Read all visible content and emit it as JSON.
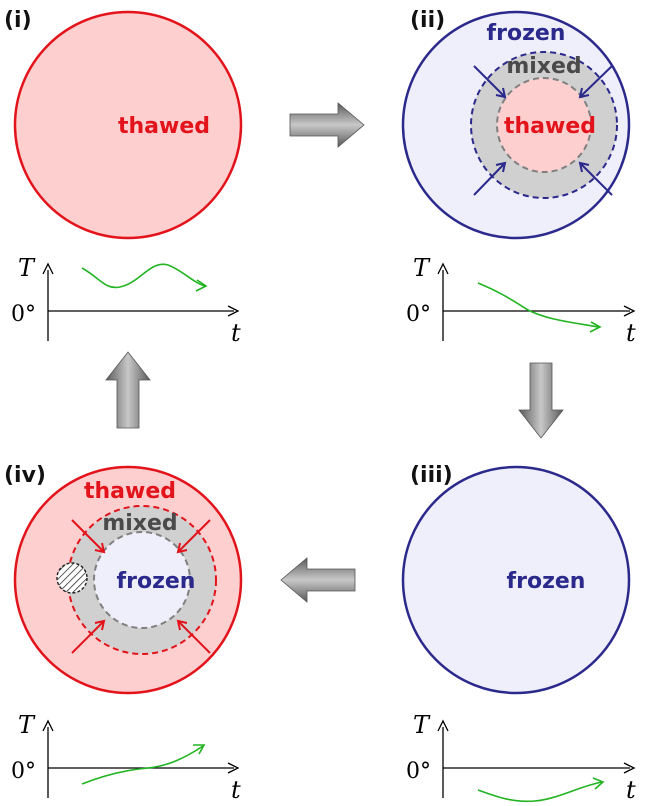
{
  "colors": {
    "thawed_stroke": "#e3131b",
    "thawed_fill": "#fdcfcf",
    "frozen_stroke": "#2b2a8c",
    "frozen_fill": "#efeffb",
    "mixed_fill": "#d0d0d0",
    "mixed_text": "#4a4a4a",
    "curve": "#22b422",
    "arrow_grey": "#808080"
  },
  "panels": [
    {
      "label": "(i)",
      "state": "thawed"
    },
    {
      "label": "(ii)",
      "outer": "frozen",
      "ring": "mixed",
      "inner": "thawed"
    },
    {
      "label": "(iii)",
      "state": "frozen"
    },
    {
      "label": "(iv)",
      "outer": "thawed",
      "ring": "mixed",
      "inner": "frozen"
    }
  ],
  "graph": {
    "y_label": "T",
    "zero_label": "0°",
    "x_label": "t"
  }
}
